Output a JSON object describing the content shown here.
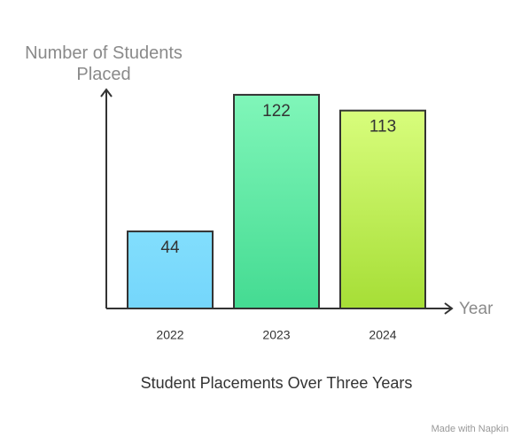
{
  "chart_data": {
    "type": "bar",
    "title": "Student Placements Over Three Years",
    "y_label": "Number of Students Placed",
    "x_label": "Year",
    "categories": [
      "2022",
      "2023",
      "2024"
    ],
    "values": [
      44,
      122,
      113
    ],
    "colors": [
      [
        "#82defd",
        "#74d6fb"
      ],
      [
        "#80f6b9",
        "#44db92"
      ],
      [
        "#d8fd7c",
        "#a6de36"
      ]
    ],
    "ylim": [
      0,
      125
    ],
    "watermark": "Made with Napkin"
  }
}
